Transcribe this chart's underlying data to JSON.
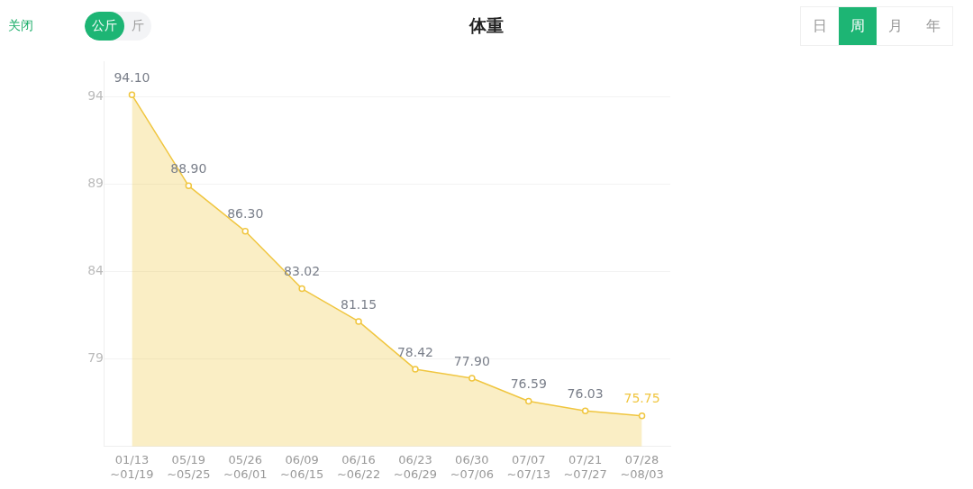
{
  "chart_data": {
    "type": "area",
    "title": "体重",
    "categories": [
      "01/13\n~01/19",
      "05/19\n~05/25",
      "05/26\n~06/01",
      "06/09\n~06/15",
      "06/16\n~06/22",
      "06/23\n~06/29",
      "06/30\n~07/06",
      "07/07\n~07/13",
      "07/21\n~07/27",
      "07/28\n~08/03"
    ],
    "series": [
      {
        "color": "#f0c640",
        "values": [
          94.1,
          88.9,
          86.3,
          83.02,
          81.15,
          78.42,
          77.9,
          76.59,
          76.03,
          75.75
        ],
        "value_labels": [
          "94.10",
          "88.90",
          "86.30",
          "83.02",
          "81.15",
          "78.42",
          "77.90",
          "76.59",
          "76.03",
          "75.75"
        ]
      }
    ],
    "ylim": [
      74,
      96
    ],
    "yticks": [
      94,
      89,
      84,
      79
    ],
    "grid": "y",
    "marker": "circle",
    "legend": false,
    "annotations": [
      "关闭",
      "公斤",
      "斤",
      "日",
      "周",
      "月",
      "年"
    ]
  }
}
